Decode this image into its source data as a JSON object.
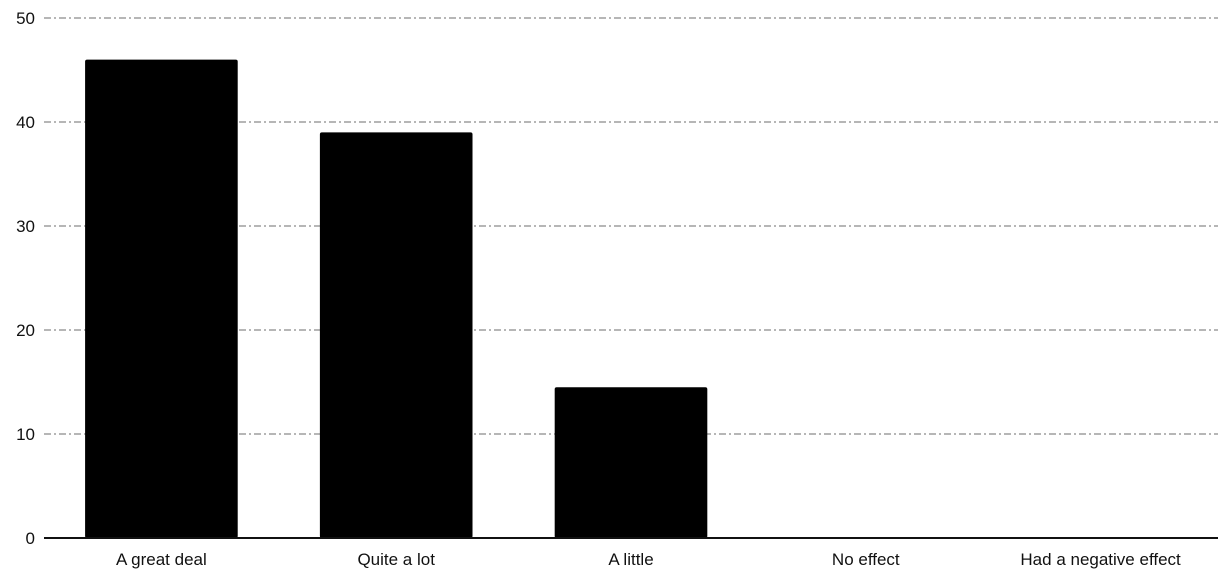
{
  "chart_data": {
    "type": "bar",
    "title": "",
    "xlabel": "",
    "ylabel": "",
    "categories": [
      "A great deal",
      "Quite a lot",
      "A little",
      "No effect",
      "Had a negative effect"
    ],
    "values": [
      46,
      39,
      14.5,
      0,
      0
    ],
    "ylim": [
      0,
      50
    ],
    "yticks": [
      0,
      10,
      20,
      30,
      40,
      50
    ],
    "grid": true,
    "legend": "none",
    "colors": {
      "bar": "#000000",
      "grid": "#8a8a8a",
      "axis": "#111111",
      "text": "#111111"
    }
  }
}
